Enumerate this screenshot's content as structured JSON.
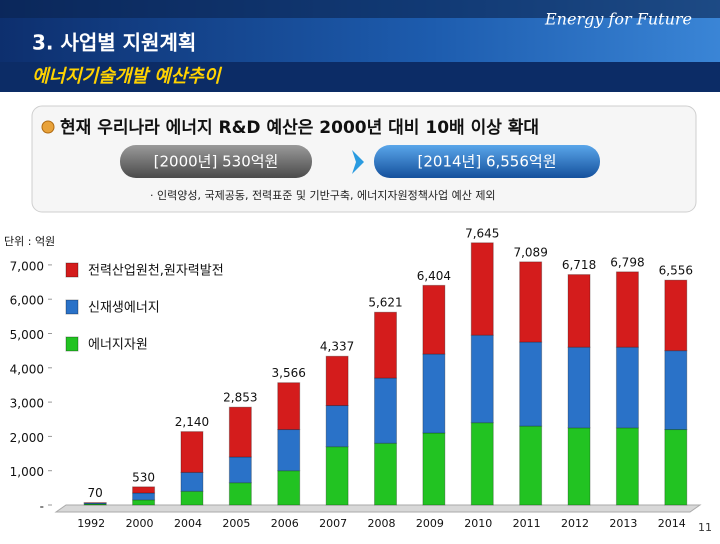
{
  "header_tagline": "Energy for Future",
  "slide_title": "3. 사업별 지원계획",
  "slide_subtitle": "에너지기술개발 예산추이",
  "summary": {
    "headline": "현재 우리나라 에너지 R&D 예산은  2000년 대비 10배 이상 확대",
    "from_label": "[2000년]  530억원",
    "to_label": "[2014년]  6,556억원",
    "note": "· 인력양성, 국제공동, 전력표준 및 기반구축, 에너지자원정책사업 예산 제외"
  },
  "page_number": "11",
  "chart_data": {
    "type": "stacked_bar",
    "unit_label": "단위 : 억원",
    "categories": [
      "1992",
      "2000",
      "2004",
      "2005",
      "2006",
      "2007",
      "2008",
      "2009",
      "2010",
      "2011",
      "2012",
      "2013",
      "2014"
    ],
    "series": [
      {
        "name": "전력산업원천,원자력발전",
        "color": "#d41c1c",
        "values": [
          10,
          180,
          1190,
          1453,
          1366,
          1437,
          1921,
          2004,
          2695,
          2339,
          2118,
          2198,
          2056
        ]
      },
      {
        "name": "신재생에너지",
        "color": "#2a72c8",
        "values": [
          30,
          200,
          550,
          750,
          1200,
          1200,
          1900,
          2300,
          2550,
          2450,
          2350,
          2350,
          2300
        ]
      },
      {
        "name": "에너지자원",
        "color": "#22c322",
        "values": [
          30,
          150,
          400,
          650,
          1000,
          1700,
          1800,
          2100,
          2400,
          2300,
          2250,
          2250,
          2200
        ]
      }
    ],
    "totals": [
      70,
      530,
      2140,
      2853,
      3566,
      4337,
      5621,
      6404,
      7645,
      7089,
      6718,
      6798,
      6556
    ],
    "total_labels": [
      "70",
      "530",
      "2,140",
      "2,853",
      "3,566",
      "4,337",
      "5,621",
      "6,404",
      "7,645",
      "7,089",
      "6,718",
      "6,798",
      "6,556"
    ],
    "ylim": [
      0,
      8000
    ],
    "yticks": [
      {
        "value": 0,
        "label": "-"
      },
      {
        "value": 1000,
        "label": "1,000"
      },
      {
        "value": 2000,
        "label": "2,000"
      },
      {
        "value": 3000,
        "label": "3,000"
      },
      {
        "value": 4000,
        "label": "4,000"
      },
      {
        "value": 5000,
        "label": "5,000"
      },
      {
        "value": 6000,
        "label": "6,000"
      },
      {
        "value": 7000,
        "label": "7,000"
      }
    ],
    "grid": false,
    "legend": "upper-left"
  }
}
